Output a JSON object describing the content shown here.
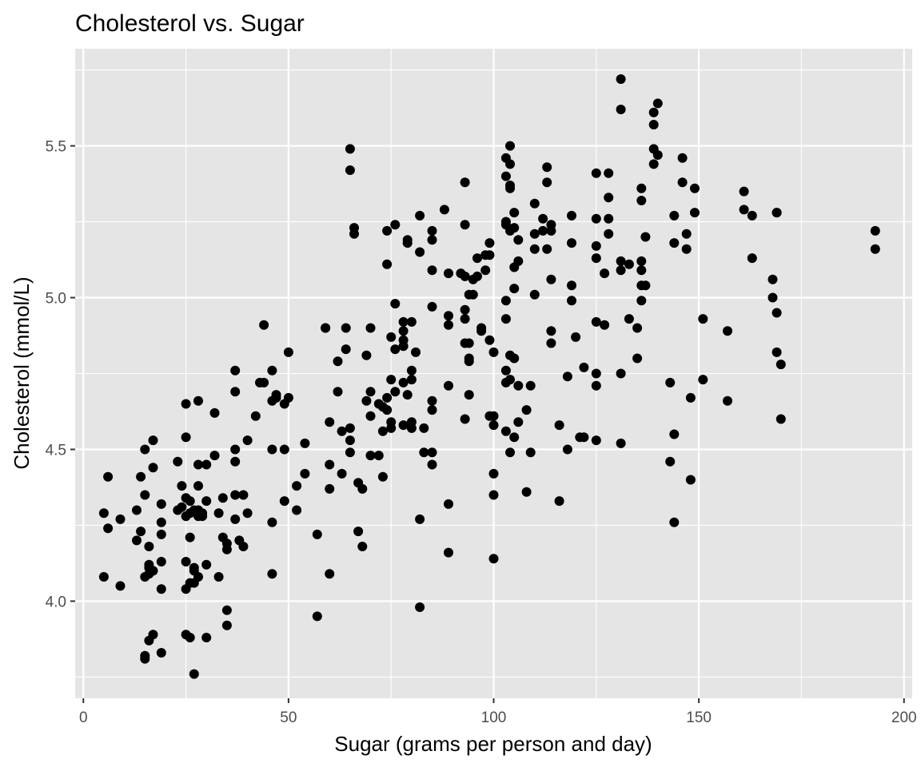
{
  "chart_data": {
    "type": "scatter",
    "title": "Cholesterol vs. Sugar",
    "xlabel": "Sugar (grams per person and day)",
    "ylabel": "Cholesterol (mmol/L)",
    "xlim": [
      -2,
      202
    ],
    "ylim": [
      3.68,
      5.82
    ],
    "x_ticks": [
      0,
      50,
      100,
      150,
      200
    ],
    "x_tick_labels": [
      "0",
      "50",
      "100",
      "150",
      "200"
    ],
    "y_ticks": [
      4.0,
      4.5,
      5.0,
      5.5
    ],
    "y_tick_labels": [
      "4.0",
      "4.5",
      "5.0",
      "5.5"
    ],
    "grid": true,
    "colors": {
      "panel": "#e5e5e5",
      "grid": "#ffffff",
      "point": "#000000",
      "text": "#000000",
      "tick_text": "#4d4d4d",
      "tick": "#333333"
    },
    "points": [
      [
        5,
        4.29
      ],
      [
        5,
        4.08
      ],
      [
        6,
        4.41
      ],
      [
        6,
        4.24
      ],
      [
        9,
        4.27
      ],
      [
        9,
        4.05
      ],
      [
        13,
        4.3
      ],
      [
        13,
        4.2
      ],
      [
        14,
        4.23
      ],
      [
        14,
        4.41
      ],
      [
        15,
        4.5
      ],
      [
        15,
        4.35
      ],
      [
        15,
        4.08
      ],
      [
        15,
        3.81
      ],
      [
        15,
        3.82
      ],
      [
        16,
        4.18
      ],
      [
        16,
        4.11
      ],
      [
        16,
        4.12
      ],
      [
        16,
        3.87
      ],
      [
        16,
        4.09
      ],
      [
        17,
        4.1
      ],
      [
        17,
        4.44
      ],
      [
        17,
        4.53
      ],
      [
        17,
        3.89
      ],
      [
        19,
        4.32
      ],
      [
        19,
        4.26
      ],
      [
        19,
        4.22
      ],
      [
        19,
        4.13
      ],
      [
        19,
        4.04
      ],
      [
        19,
        3.83
      ],
      [
        23,
        4.46
      ],
      [
        23,
        4.3
      ],
      [
        24,
        4.31
      ],
      [
        24,
        4.38
      ],
      [
        25,
        4.65
      ],
      [
        25,
        4.54
      ],
      [
        25,
        4.34
      ],
      [
        25,
        4.28
      ],
      [
        25,
        4.13
      ],
      [
        25,
        4.04
      ],
      [
        25,
        3.89
      ],
      [
        26,
        4.33
      ],
      [
        26,
        4.29
      ],
      [
        26,
        4.21
      ],
      [
        26,
        4.06
      ],
      [
        26,
        3.88
      ],
      [
        27,
        4.3
      ],
      [
        27,
        4.1
      ],
      [
        27,
        4.11
      ],
      [
        27,
        4.06
      ],
      [
        27,
        3.76
      ],
      [
        28,
        4.66
      ],
      [
        28,
        4.45
      ],
      [
        28,
        4.38
      ],
      [
        28,
        4.3
      ],
      [
        28,
        4.29
      ],
      [
        28,
        4.28
      ],
      [
        28,
        4.08
      ],
      [
        29,
        4.29
      ],
      [
        29,
        4.28
      ],
      [
        30,
        4.45
      ],
      [
        30,
        4.33
      ],
      [
        30,
        4.12
      ],
      [
        30,
        3.88
      ],
      [
        32,
        4.62
      ],
      [
        32,
        4.48
      ],
      [
        33,
        4.29
      ],
      [
        33,
        4.08
      ],
      [
        34,
        4.34
      ],
      [
        34,
        4.21
      ],
      [
        35,
        4.19
      ],
      [
        35,
        4.17
      ],
      [
        35,
        3.97
      ],
      [
        35,
        3.92
      ],
      [
        37,
        4.76
      ],
      [
        37,
        4.69
      ],
      [
        37,
        4.5
      ],
      [
        37,
        4.46
      ],
      [
        37,
        4.35
      ],
      [
        37,
        4.27
      ],
      [
        38,
        4.2
      ],
      [
        39,
        4.35
      ],
      [
        39,
        4.18
      ],
      [
        40,
        4.53
      ],
      [
        40,
        4.29
      ],
      [
        42,
        4.61
      ],
      [
        43,
        4.72
      ],
      [
        44,
        4.91
      ],
      [
        44,
        4.72
      ],
      [
        46,
        4.76
      ],
      [
        46,
        4.66
      ],
      [
        46,
        4.5
      ],
      [
        46,
        4.26
      ],
      [
        46,
        4.09
      ],
      [
        47,
        4.68
      ],
      [
        47,
        4.67
      ],
      [
        49,
        4.65
      ],
      [
        49,
        4.5
      ],
      [
        49,
        4.33
      ],
      [
        50,
        4.82
      ],
      [
        50,
        4.67
      ],
      [
        52,
        4.38
      ],
      [
        52,
        4.3
      ],
      [
        54,
        4.52
      ],
      [
        54,
        4.42
      ],
      [
        57,
        4.22
      ],
      [
        57,
        3.95
      ],
      [
        59,
        4.9
      ],
      [
        59,
        4.9
      ],
      [
        60,
        4.59
      ],
      [
        60,
        4.45
      ],
      [
        60,
        4.37
      ],
      [
        60,
        4.09
      ],
      [
        62,
        4.79
      ],
      [
        62,
        4.69
      ],
      [
        63,
        4.56
      ],
      [
        63,
        4.42
      ],
      [
        64,
        4.9
      ],
      [
        64,
        4.83
      ],
      [
        65,
        5.49
      ],
      [
        65,
        5.42
      ],
      [
        65,
        4.57
      ],
      [
        65,
        4.53
      ],
      [
        65,
        4.49
      ],
      [
        66,
        5.23
      ],
      [
        66,
        5.21
      ],
      [
        67,
        4.39
      ],
      [
        67,
        4.23
      ],
      [
        68,
        4.37
      ],
      [
        68,
        4.18
      ],
      [
        69,
        4.81
      ],
      [
        69,
        4.66
      ],
      [
        70,
        4.9
      ],
      [
        70,
        4.69
      ],
      [
        70,
        4.61
      ],
      [
        70,
        4.48
      ],
      [
        72,
        4.65
      ],
      [
        72,
        4.48
      ],
      [
        73,
        4.41
      ],
      [
        73,
        4.56
      ],
      [
        73,
        4.64
      ],
      [
        74,
        5.22
      ],
      [
        74,
        5.11
      ],
      [
        74,
        4.67
      ],
      [
        74,
        4.63
      ],
      [
        75,
        4.87
      ],
      [
        75,
        4.73
      ],
      [
        75,
        4.59
      ],
      [
        75,
        4.57
      ],
      [
        76,
        5.24
      ],
      [
        76,
        4.98
      ],
      [
        76,
        4.83
      ],
      [
        76,
        4.69
      ],
      [
        78,
        4.92
      ],
      [
        78,
        4.89
      ],
      [
        78,
        4.86
      ],
      [
        78,
        4.84
      ],
      [
        78,
        4.72
      ],
      [
        78,
        4.58
      ],
      [
        79,
        5.19
      ],
      [
        79,
        5.18
      ],
      [
        79,
        4.68
      ],
      [
        80,
        4.92
      ],
      [
        80,
        4.76
      ],
      [
        80,
        4.73
      ],
      [
        80,
        4.59
      ],
      [
        80,
        4.57
      ],
      [
        81,
        4.82
      ],
      [
        82,
        5.27
      ],
      [
        82,
        5.15
      ],
      [
        82,
        4.27
      ],
      [
        82,
        3.98
      ],
      [
        83,
        4.57
      ],
      [
        83,
        4.49
      ],
      [
        85,
        5.22
      ],
      [
        85,
        5.19
      ],
      [
        85,
        5.09
      ],
      [
        85,
        4.97
      ],
      [
        85,
        4.66
      ],
      [
        85,
        4.63
      ],
      [
        85,
        4.49
      ],
      [
        85,
        4.45
      ],
      [
        88,
        5.29
      ],
      [
        89,
        5.08
      ],
      [
        89,
        4.94
      ],
      [
        89,
        4.91
      ],
      [
        89,
        4.71
      ],
      [
        89,
        4.32
      ],
      [
        89,
        4.16
      ],
      [
        92,
        5.08
      ],
      [
        93,
        5.38
      ],
      [
        93,
        5.24
      ],
      [
        93,
        5.07
      ],
      [
        93,
        4.96
      ],
      [
        93,
        4.93
      ],
      [
        93,
        4.85
      ],
      [
        93,
        4.6
      ],
      [
        94,
        5.01
      ],
      [
        94,
        4.85
      ],
      [
        94,
        4.8
      ],
      [
        94,
        4.79
      ],
      [
        94,
        4.68
      ],
      [
        95,
        5.06
      ],
      [
        95,
        5.01
      ],
      [
        96,
        5.13
      ],
      [
        96,
        5.07
      ],
      [
        97,
        4.9
      ],
      [
        97,
        4.89
      ],
      [
        98,
        5.14
      ],
      [
        98,
        5.09
      ],
      [
        99,
        5.18
      ],
      [
        99,
        5.14
      ],
      [
        99,
        4.86
      ],
      [
        99,
        4.61
      ],
      [
        100,
        4.82
      ],
      [
        100,
        4.61
      ],
      [
        100,
        4.58
      ],
      [
        100,
        4.42
      ],
      [
        100,
        4.35
      ],
      [
        100,
        4.14
      ],
      [
        103,
        5.46
      ],
      [
        103,
        5.4
      ],
      [
        103,
        5.25
      ],
      [
        103,
        5.24
      ],
      [
        103,
        4.99
      ],
      [
        103,
        4.93
      ],
      [
        103,
        4.76
      ],
      [
        103,
        4.72
      ],
      [
        103,
        4.56
      ],
      [
        104,
        5.5
      ],
      [
        104,
        5.44
      ],
      [
        104,
        5.37
      ],
      [
        104,
        5.36
      ],
      [
        104,
        5.22
      ],
      [
        104,
        4.81
      ],
      [
        104,
        4.73
      ],
      [
        104,
        4.49
      ],
      [
        105,
        5.28
      ],
      [
        105,
        5.23
      ],
      [
        105,
        5.1
      ],
      [
        105,
        5.03
      ],
      [
        105,
        4.8
      ],
      [
        105,
        4.54
      ],
      [
        106,
        5.19
      ],
      [
        106,
        5.12
      ],
      [
        106,
        4.71
      ],
      [
        106,
        4.59
      ],
      [
        108,
        4.63
      ],
      [
        108,
        4.36
      ],
      [
        109,
        4.71
      ],
      [
        109,
        4.49
      ],
      [
        110,
        5.31
      ],
      [
        110,
        5.21
      ],
      [
        110,
        5.16
      ],
      [
        110,
        5.01
      ],
      [
        112,
        5.26
      ],
      [
        112,
        5.22
      ],
      [
        113,
        5.43
      ],
      [
        113,
        5.38
      ],
      [
        113,
        5.16
      ],
      [
        114,
        5.24
      ],
      [
        114,
        5.22
      ],
      [
        114,
        5.06
      ],
      [
        114,
        4.89
      ],
      [
        114,
        4.85
      ],
      [
        116,
        4.58
      ],
      [
        116,
        4.33
      ],
      [
        118,
        4.74
      ],
      [
        118,
        4.5
      ],
      [
        119,
        5.27
      ],
      [
        119,
        5.18
      ],
      [
        119,
        5.04
      ],
      [
        119,
        4.99
      ],
      [
        120,
        4.87
      ],
      [
        121,
        4.54
      ],
      [
        122,
        4.77
      ],
      [
        122,
        4.54
      ],
      [
        125,
        5.41
      ],
      [
        125,
        5.26
      ],
      [
        125,
        5.17
      ],
      [
        125,
        5.13
      ],
      [
        125,
        4.92
      ],
      [
        125,
        4.75
      ],
      [
        125,
        4.71
      ],
      [
        125,
        4.53
      ],
      [
        127,
        5.08
      ],
      [
        127,
        4.91
      ],
      [
        128,
        5.41
      ],
      [
        128,
        5.33
      ],
      [
        128,
        5.26
      ],
      [
        128,
        5.21
      ],
      [
        131,
        5.72
      ],
      [
        131,
        5.62
      ],
      [
        131,
        5.12
      ],
      [
        131,
        5.09
      ],
      [
        131,
        4.75
      ],
      [
        131,
        4.52
      ],
      [
        133,
        5.11
      ],
      [
        133,
        4.93
      ],
      [
        135,
        4.9
      ],
      [
        135,
        4.8
      ],
      [
        136,
        5.36
      ],
      [
        136,
        5.32
      ],
      [
        136,
        5.12
      ],
      [
        136,
        5.09
      ],
      [
        136,
        5.04
      ],
      [
        136,
        4.99
      ],
      [
        137,
        5.2
      ],
      [
        137,
        5.04
      ],
      [
        139,
        5.61
      ],
      [
        139,
        5.57
      ],
      [
        139,
        5.49
      ],
      [
        139,
        5.44
      ],
      [
        140,
        5.64
      ],
      [
        140,
        5.47
      ],
      [
        143,
        4.72
      ],
      [
        143,
        4.46
      ],
      [
        144,
        5.27
      ],
      [
        144,
        5.18
      ],
      [
        144,
        4.55
      ],
      [
        144,
        4.26
      ],
      [
        146,
        5.46
      ],
      [
        146,
        5.38
      ],
      [
        147,
        5.21
      ],
      [
        147,
        5.16
      ],
      [
        148,
        4.67
      ],
      [
        148,
        4.4
      ],
      [
        149,
        5.36
      ],
      [
        149,
        5.28
      ],
      [
        151,
        4.93
      ],
      [
        151,
        4.73
      ],
      [
        157,
        4.89
      ],
      [
        157,
        4.66
      ],
      [
        161,
        5.35
      ],
      [
        161,
        5.29
      ],
      [
        163,
        5.27
      ],
      [
        163,
        5.13
      ],
      [
        168,
        5.06
      ],
      [
        168,
        5.0
      ],
      [
        169,
        5.28
      ],
      [
        169,
        5.28
      ],
      [
        169,
        4.95
      ],
      [
        169,
        4.82
      ],
      [
        170,
        4.78
      ],
      [
        170,
        4.6
      ],
      [
        193,
        5.22
      ],
      [
        193,
        5.16
      ]
    ]
  }
}
